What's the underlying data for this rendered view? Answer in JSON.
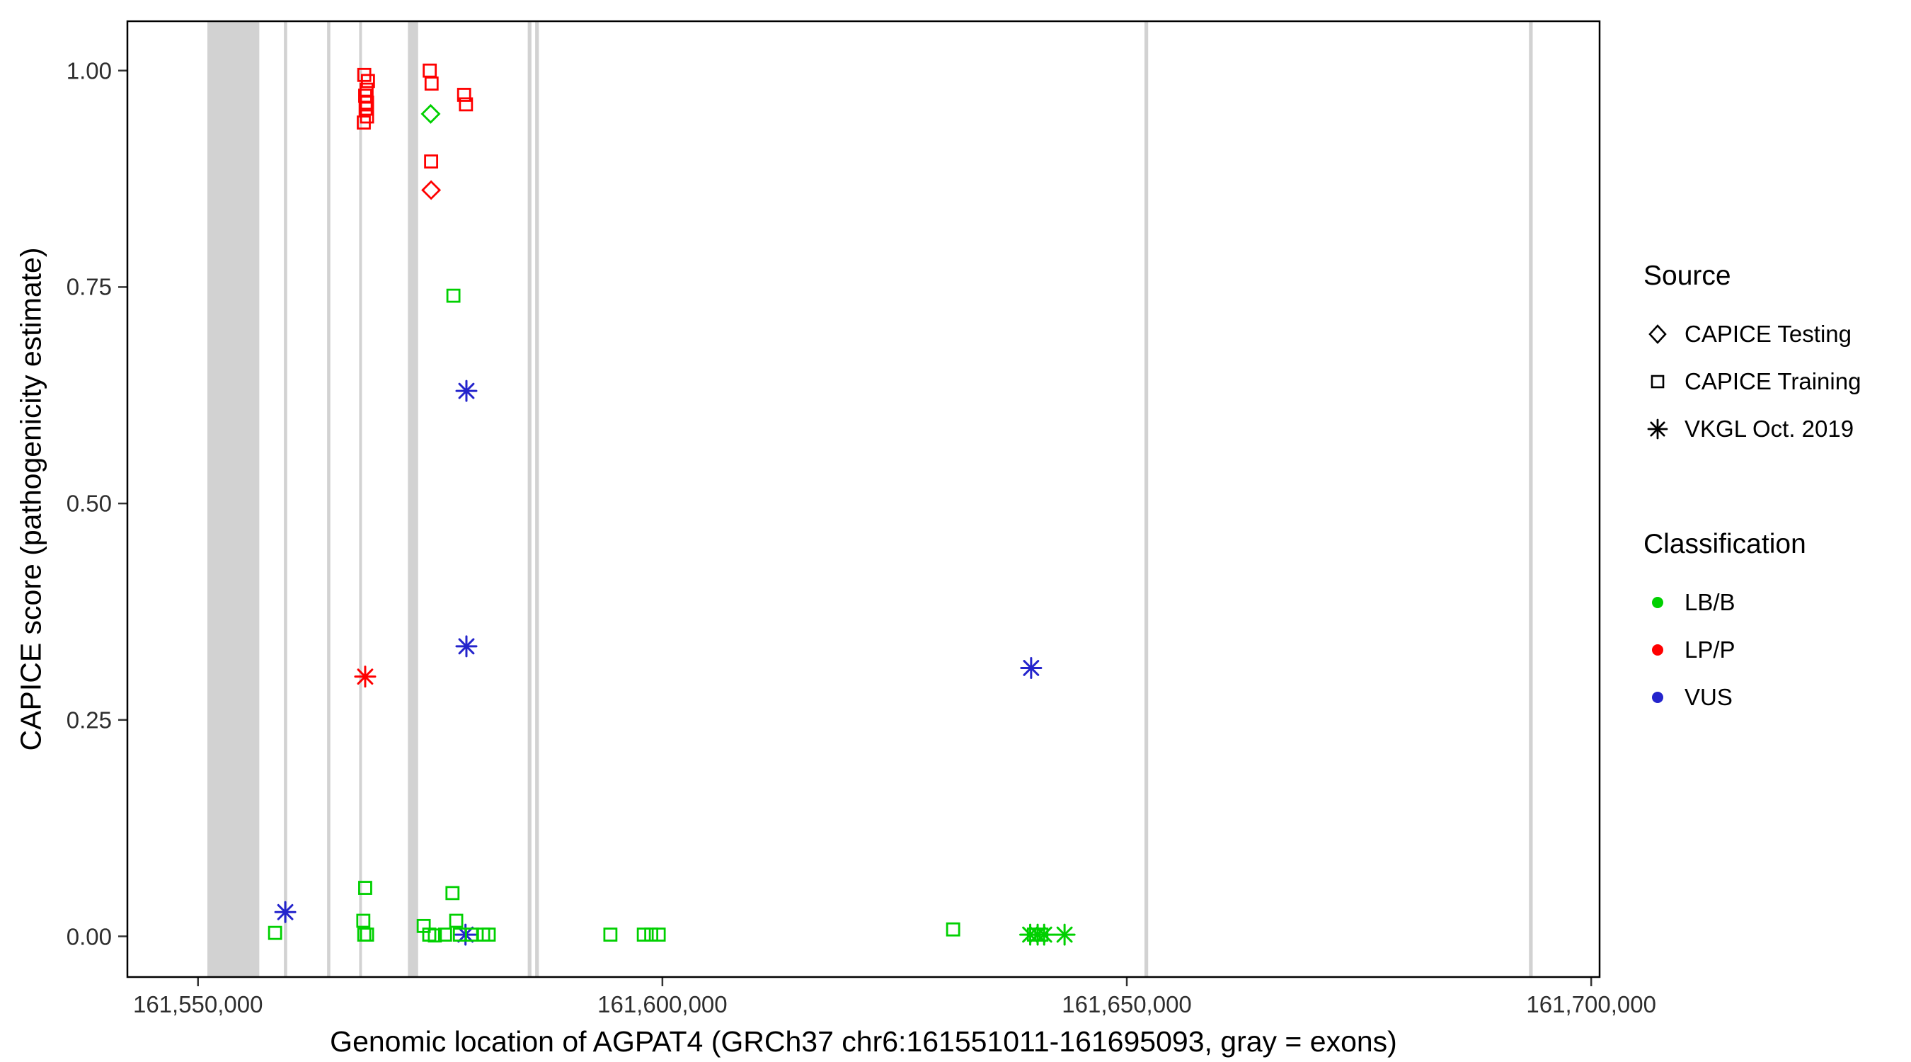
{
  "chart_data": {
    "type": "scatter",
    "title": "",
    "xlabel": "Genomic location of AGPAT4 (GRCh37 chr6:161551011-161695093, gray = exons)",
    "ylabel": "CAPICE score (pathogenicity estimate)",
    "xlim": [
      161542400,
      161700900
    ],
    "ylim": [
      -0.047,
      1.057
    ],
    "grid": false,
    "legend_position": "right",
    "x_ticks": [
      {
        "v": 161550000,
        "label": "161,550,000"
      },
      {
        "v": 161600000,
        "label": "161,600,000"
      },
      {
        "v": 161650000,
        "label": "161,650,000"
      },
      {
        "v": 161700000,
        "label": "161,700,000"
      }
    ],
    "y_ticks": [
      {
        "v": 0.0,
        "label": "0.00"
      },
      {
        "v": 0.25,
        "label": "0.25"
      },
      {
        "v": 0.5,
        "label": "0.50"
      },
      {
        "v": 0.75,
        "label": "0.75"
      },
      {
        "v": 1.0,
        "label": "1.00"
      }
    ],
    "exon_color": "#D2D2D2",
    "panel_border_color": "#000000",
    "exons": [
      [
        161551011,
        161556600
      ],
      [
        161559250,
        161559600
      ],
      [
        161563900,
        161564250
      ],
      [
        161567350,
        161567650
      ],
      [
        161572600,
        161573700
      ],
      [
        161585500,
        161585900
      ],
      [
        161586300,
        161586700
      ],
      [
        161651900,
        161652300
      ],
      [
        161693300,
        161693700
      ]
    ],
    "classification_colors": {
      "LB/B": "#00D000",
      "LP/P": "#FF0000",
      "VUS": "#2424CC"
    },
    "source_shapes": {
      "CAPICE Testing": "diamond",
      "CAPICE Training": "square",
      "VKGL Oct. 2019": "asterisk"
    },
    "legend": {
      "source": {
        "title": "Source",
        "items": [
          {
            "label": "CAPICE Testing",
            "shape": "diamond"
          },
          {
            "label": "CAPICE Training",
            "shape": "square"
          },
          {
            "label": "VKGL Oct. 2019",
            "shape": "asterisk"
          }
        ]
      },
      "classification": {
        "title": "Classification",
        "items": [
          {
            "label": "LB/B",
            "color": "#00D000"
          },
          {
            "label": "LP/P",
            "color": "#FF0000"
          },
          {
            "label": "VUS",
            "color": "#2424CC"
          }
        ]
      }
    },
    "points_columns": [
      "position",
      "score",
      "source",
      "classification"
    ],
    "points": [
      [
        161567900,
        0.995,
        "CAPICE Training",
        "LP/P"
      ],
      [
        161568300,
        0.988,
        "CAPICE Training",
        "LP/P"
      ],
      [
        161568150,
        0.978,
        "CAPICE Training",
        "LP/P"
      ],
      [
        161568000,
        0.971,
        "CAPICE Training",
        "LP/P"
      ],
      [
        161568200,
        0.963,
        "CAPICE Training",
        "LP/P"
      ],
      [
        161568050,
        0.956,
        "CAPICE Training",
        "LP/P"
      ],
      [
        161568200,
        0.947,
        "CAPICE Training",
        "LP/P"
      ],
      [
        161567850,
        0.94,
        "CAPICE Training",
        "LP/P"
      ],
      [
        161574950,
        1.0,
        "CAPICE Training",
        "LP/P"
      ],
      [
        161575150,
        0.985,
        "CAPICE Training",
        "LP/P"
      ],
      [
        161575050,
        0.95,
        "CAPICE Testing",
        "LB/B"
      ],
      [
        161575100,
        0.895,
        "CAPICE Training",
        "LP/P"
      ],
      [
        161575100,
        0.862,
        "CAPICE Testing",
        "LP/P"
      ],
      [
        161578650,
        0.972,
        "CAPICE Training",
        "LP/P"
      ],
      [
        161578850,
        0.961,
        "CAPICE Training",
        "LP/P"
      ],
      [
        161577500,
        0.74,
        "CAPICE Training",
        "LB/B"
      ],
      [
        161578900,
        0.63,
        "VKGL Oct. 2019",
        "VUS"
      ],
      [
        161578900,
        0.335,
        "VKGL Oct. 2019",
        "VUS"
      ],
      [
        161568000,
        0.3,
        "VKGL Oct. 2019",
        "LP/P"
      ],
      [
        161639700,
        0.31,
        "VKGL Oct. 2019",
        "VUS"
      ],
      [
        161559400,
        0.028,
        "VKGL Oct. 2019",
        "VUS"
      ],
      [
        161578800,
        0.002,
        "VKGL Oct. 2019",
        "VUS"
      ],
      [
        161639600,
        0.002,
        "VKGL Oct. 2019",
        "LB/B"
      ],
      [
        161640400,
        0.002,
        "VKGL Oct. 2019",
        "LB/B"
      ],
      [
        161641100,
        0.002,
        "VKGL Oct. 2019",
        "LB/B"
      ],
      [
        161643300,
        0.002,
        "VKGL Oct. 2019",
        "LB/B"
      ],
      [
        161558300,
        0.004,
        "CAPICE Training",
        "LB/B"
      ],
      [
        161568000,
        0.056,
        "CAPICE Training",
        "LB/B"
      ],
      [
        161567800,
        0.018,
        "CAPICE Training",
        "LB/B"
      ],
      [
        161567900,
        0.002,
        "CAPICE Training",
        "LB/B"
      ],
      [
        161568200,
        0.002,
        "CAPICE Training",
        "LB/B"
      ],
      [
        161574300,
        0.012,
        "CAPICE Training",
        "LB/B"
      ],
      [
        161574900,
        0.002,
        "CAPICE Training",
        "LB/B"
      ],
      [
        161575500,
        0.001,
        "CAPICE Training",
        "LB/B"
      ],
      [
        161576600,
        0.002,
        "CAPICE Training",
        "LB/B"
      ],
      [
        161577400,
        0.05,
        "CAPICE Training",
        "LB/B"
      ],
      [
        161577800,
        0.018,
        "CAPICE Training",
        "LB/B"
      ],
      [
        161578200,
        0.002,
        "CAPICE Training",
        "LB/B"
      ],
      [
        161579500,
        0.002,
        "CAPICE Training",
        "LB/B"
      ],
      [
        161580700,
        0.002,
        "CAPICE Training",
        "LB/B"
      ],
      [
        161581300,
        0.002,
        "CAPICE Training",
        "LB/B"
      ],
      [
        161594400,
        0.002,
        "CAPICE Training",
        "LB/B"
      ],
      [
        161598000,
        0.002,
        "CAPICE Training",
        "LB/B"
      ],
      [
        161598800,
        0.002,
        "CAPICE Training",
        "LB/B"
      ],
      [
        161599600,
        0.002,
        "CAPICE Training",
        "LB/B"
      ],
      [
        161631300,
        0.008,
        "CAPICE Training",
        "LB/B"
      ],
      [
        161640000,
        0.002,
        "CAPICE Training",
        "LB/B"
      ],
      [
        161640800,
        0.002,
        "CAPICE Training",
        "LB/B"
      ]
    ]
  }
}
